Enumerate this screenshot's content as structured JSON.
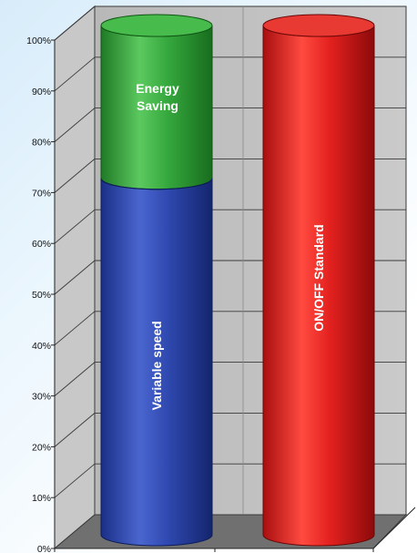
{
  "chart_data": {
    "type": "bar",
    "style": "3d-cylinder-stacked",
    "categories": [
      "",
      ""
    ],
    "series": [
      {
        "name": "",
        "label": "Variable speed",
        "values": [
          70,
          0
        ],
        "color": "#2f49b0"
      },
      {
        "name": "",
        "label": "Energy Saving",
        "values": [
          30,
          0
        ],
        "color": "#35a83d"
      },
      {
        "name": "",
        "label": "ON/OFF Standard",
        "values": [
          0,
          100
        ],
        "color": "#e3211f"
      }
    ],
    "bar_text": {
      "variable_speed": "Variable speed",
      "energy_saving_line1": "Energy",
      "energy_saving_line2": "Saving",
      "onoff": "ON/OFF Standard"
    },
    "ylim": [
      0,
      100
    ],
    "yticks": [
      "0%",
      "10%",
      "20%",
      "30%",
      "40%",
      "50%",
      "60%",
      "70%",
      "80%",
      "90%",
      "100%"
    ],
    "title": "",
    "xlabel": "",
    "ylabel": "",
    "grid": true,
    "legend": "none",
    "colors": {
      "wall": "#c3c3c3",
      "floor": "#707070",
      "grid": "#3a3a3a"
    }
  }
}
